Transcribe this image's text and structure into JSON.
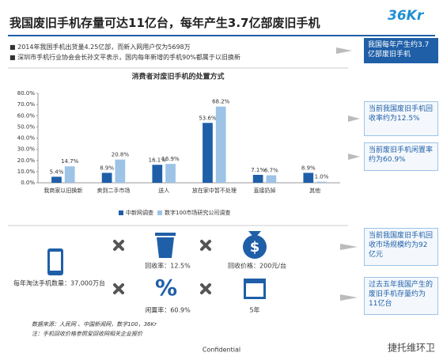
{
  "header": {
    "title": "我国废旧手机存量可达11亿台，每年产生3.7亿部废旧手机",
    "logo": "36Kr"
  },
  "bullets": [
    "2014年我国手机出货量4.25亿部，而新入网用户仅为5698万",
    "深圳市手机行业协会会长孙文平表示，国内每年新增的手机90%都属于以旧换新"
  ],
  "callouts": [
    "我国每年产生约3.7亿部废旧手机",
    "当前我国废旧手机回收率约为12.5%",
    "当前废旧手机闲置率约为60.9%",
    "当前我国废旧手机回收市场规模约为92亿元",
    "过去五年我国产生的废旧手机存量约为11亿台"
  ],
  "chart_data": {
    "type": "bar",
    "title": "消费者对废旧手机的处置方式",
    "categories": [
      "我商家以旧换新",
      "卖到二手市场",
      "送人",
      "放在家中暂不处理",
      "直接扔掉",
      "其他"
    ],
    "series": [
      {
        "name": "中新网调查",
        "color": "#1f5fa8",
        "values": [
          5.4,
          8.9,
          16.1,
          53.6,
          7.1,
          8.9
        ],
        "value_labels": [
          "5.4%",
          "8.9%",
          "16.1%",
          "53.6%",
          "7.1%",
          "8.9%"
        ]
      },
      {
        "name": "数字100市场研究公司调查",
        "color": "#9dc3e6",
        "values": [
          14.7,
          20.8,
          16.9,
          68.2,
          6.7,
          1.0
        ],
        "value_labels": [
          "14.7%",
          "20.8%",
          "16.9%",
          "68.2%",
          "6.7%",
          "1.0%"
        ]
      }
    ],
    "ylim": [
      0,
      80
    ],
    "yticks": [
      {
        "value": 0,
        "label": "0.0%"
      },
      {
        "value": 10,
        "label": "10.0%"
      },
      {
        "value": 20,
        "label": "20.0%"
      },
      {
        "value": 30,
        "label": "30.0%"
      },
      {
        "value": 40,
        "label": "40.0%"
      },
      {
        "value": 50,
        "label": "50.0%"
      },
      {
        "value": 60,
        "label": "60.0%"
      },
      {
        "value": 70,
        "label": "70.0%"
      },
      {
        "value": 80,
        "label": "80.0%"
      }
    ],
    "grid": false,
    "legend": "bottom"
  },
  "facts": {
    "phones": "每年淘汰手机数量：37,000万台",
    "recycle_rate": "回收率：12.5%",
    "recycle_price": "回收价格：200元/台",
    "idle_rate": "闲置率：60.9%",
    "years": "5年"
  },
  "footer": {
    "sources": "数据来源：人民网 、中国新闻网，数字100，36Kr",
    "note": "注：手机回收价格参照爱回收网相关企业报价",
    "confidential": "Confidential",
    "watermark": "捷托维环卫"
  }
}
